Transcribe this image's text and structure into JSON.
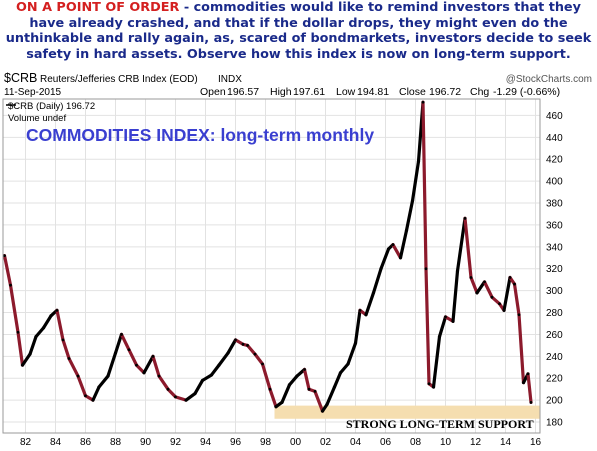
{
  "caption": {
    "lead": "ON A POINT OF ORDER",
    "rest": " - commodities would like to remind investors that they have already crashed, and that if the dollar drops, they might even do the unthinkable and rally again, as, scared of bondmarkets, investors decide to seek safety in hard assets. Observe how this index is now on long-term support."
  },
  "chart_header": {
    "symbol": "$CRB",
    "name": "Reuters/Jefferies CRB Index (EOD)",
    "exchange": "INDX",
    "watermark": "@StockCharts.com",
    "date": "11-Sep-2015",
    "open_label": "Open",
    "open": "196.57",
    "high_label": "High",
    "high": "197.61",
    "low_label": "Low",
    "low": "194.81",
    "close_label": "Close",
    "close": "196.72",
    "chg_label": "Chg",
    "chg": "-1.29 (-0.66%)",
    "legend_series": "$CRB (Daily) 196.72",
    "legend_volume": "Volume undef"
  },
  "annotations": {
    "chart_title": "COMMODITIES INDEX: long-term monthly",
    "support_label": "STRONG LONG-TERM SUPPORT"
  },
  "colors": {
    "caption_lead": "#d42020",
    "caption_text": "#1a2a8a",
    "chart_title": "#3a3fd0",
    "price_up": "#000000",
    "price_down": "#8c1a2c",
    "support_band": "#f5deb0"
  },
  "chart_data": {
    "type": "line",
    "title": "COMMODITIES INDEX: long-term monthly",
    "xlabel": "",
    "ylabel": "",
    "x_ticks": [
      "82",
      "84",
      "86",
      "88",
      "90",
      "92",
      "94",
      "96",
      "98",
      "00",
      "02",
      "04",
      "06",
      "08",
      "10",
      "12",
      "14",
      "16"
    ],
    "y_ticks": [
      180,
      200,
      220,
      240,
      260,
      280,
      300,
      320,
      340,
      360,
      380,
      400,
      420,
      440,
      460
    ],
    "xlim": [
      1980.5,
      2016.3
    ],
    "ylim": [
      170,
      475
    ],
    "y_axis_side": "right",
    "grid": true,
    "support_band": {
      "x_start": 1998.6,
      "x_end": 2016.3,
      "y_low": 183,
      "y_high": 195
    },
    "series": [
      {
        "name": "$CRB (Daily)",
        "x": [
          1980.6,
          1981.0,
          1981.5,
          1981.8,
          1982.3,
          1982.7,
          1983.2,
          1983.7,
          1984.1,
          1984.5,
          1984.9,
          1985.5,
          1986.0,
          1986.5,
          1986.9,
          1987.5,
          1988.0,
          1988.4,
          1988.9,
          1989.4,
          1989.9,
          1990.5,
          1990.9,
          1991.5,
          1992.0,
          1992.7,
          1993.3,
          1993.8,
          1994.4,
          1994.9,
          1995.5,
          1996.0,
          1996.5,
          1996.8,
          1997.3,
          1997.8,
          1998.3,
          1998.7,
          1999.1,
          1999.6,
          2000.1,
          2000.6,
          2000.9,
          2001.3,
          2001.8,
          2002.1,
          2002.6,
          2003.0,
          2003.5,
          2004.0,
          2004.3,
          2004.7,
          2005.2,
          2005.7,
          2006.2,
          2006.5,
          2007.0,
          2007.4,
          2007.8,
          2008.2,
          2008.5,
          2008.7,
          2008.9,
          2009.2,
          2009.6,
          2010.0,
          2010.5,
          2010.8,
          2011.3,
          2011.7,
          2012.1,
          2012.6,
          2013.1,
          2013.6,
          2013.9,
          2014.3,
          2014.6,
          2014.9,
          2015.2,
          2015.5,
          2015.7
        ],
        "values": [
          332,
          305,
          262,
          232,
          242,
          258,
          266,
          277,
          282,
          255,
          238,
          222,
          204,
          200,
          212,
          222,
          243,
          260,
          246,
          232,
          225,
          240,
          222,
          210,
          203,
          200,
          206,
          218,
          223,
          232,
          243,
          255,
          251,
          250,
          242,
          233,
          210,
          194,
          198,
          214,
          222,
          228,
          210,
          208,
          190,
          196,
          212,
          225,
          233,
          252,
          282,
          278,
          298,
          320,
          338,
          342,
          330,
          355,
          382,
          418,
          472,
          320,
          215,
          212,
          258,
          276,
          272,
          318,
          366,
          312,
          298,
          308,
          294,
          288,
          282,
          312,
          306,
          278,
          216,
          224,
          198
        ]
      }
    ]
  }
}
